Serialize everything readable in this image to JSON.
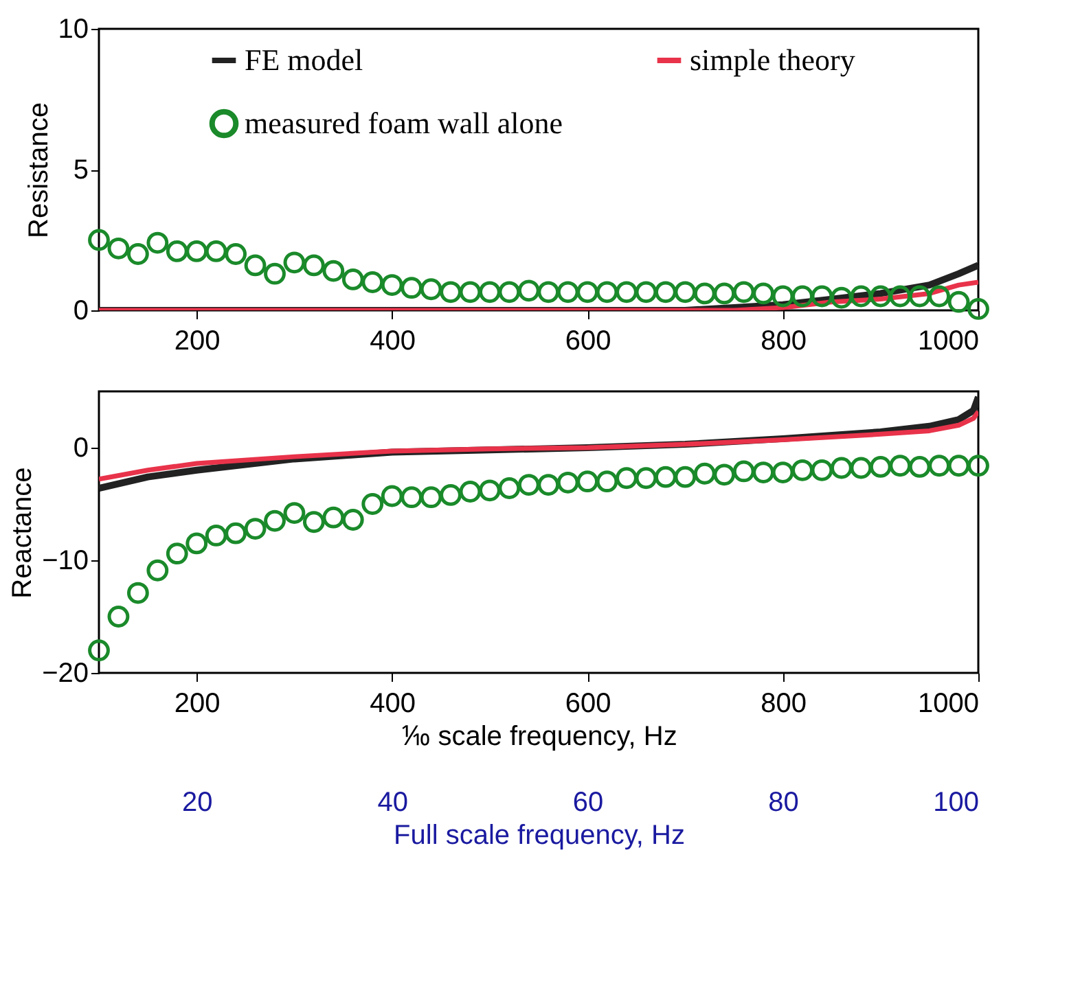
{
  "chart_data": [
    {
      "type": "line",
      "ylabel": "Resistance",
      "xlim": [
        100,
        1000
      ],
      "xticks": [
        200,
        400,
        600,
        800,
        1000
      ],
      "ylim": [
        0,
        10
      ],
      "yticks": [
        0,
        5,
        10
      ],
      "grid": false,
      "legend": "top",
      "series": [
        {
          "name": "FE model",
          "color": "#222222",
          "x": [
            100,
            300,
            500,
            700,
            750,
            800,
            850,
            900,
            950,
            980,
            1000
          ],
          "values": [
            0,
            0,
            0,
            0,
            0.1,
            0.2,
            0.4,
            0.6,
            0.9,
            1.3,
            1.6
          ]
        },
        {
          "name": "simple theory",
          "color": "#e8334a",
          "x": [
            100,
            300,
            500,
            750,
            800,
            850,
            900,
            950,
            980,
            1000
          ],
          "values": [
            0,
            0,
            0,
            0,
            0.1,
            0.3,
            0.4,
            0.6,
            0.9,
            1.0
          ]
        },
        {
          "name": "measured foam wall alone",
          "type": "scatter",
          "marker": "circle",
          "color": "#1a8a2a",
          "x": [
            100,
            120,
            140,
            160,
            180,
            200,
            220,
            240,
            260,
            280,
            300,
            320,
            340,
            360,
            380,
            400,
            420,
            440,
            460,
            480,
            500,
            520,
            540,
            560,
            580,
            600,
            620,
            640,
            660,
            680,
            700,
            720,
            740,
            760,
            780,
            800,
            820,
            840,
            860,
            880,
            900,
            920,
            940,
            960,
            980,
            1000
          ],
          "values": [
            2.5,
            2.2,
            2.0,
            2.4,
            2.1,
            2.1,
            2.1,
            2.0,
            1.6,
            1.3,
            1.7,
            1.6,
            1.4,
            1.1,
            1.0,
            0.9,
            0.8,
            0.75,
            0.65,
            0.65,
            0.65,
            0.65,
            0.7,
            0.65,
            0.65,
            0.65,
            0.65,
            0.65,
            0.65,
            0.65,
            0.65,
            0.6,
            0.6,
            0.65,
            0.6,
            0.5,
            0.5,
            0.5,
            0.45,
            0.5,
            0.5,
            0.5,
            0.5,
            0.5,
            0.3,
            0.05
          ]
        }
      ]
    },
    {
      "type": "line",
      "ylabel": "Reactance",
      "xlabel": "⅒ scale frequency, Hz",
      "x2label": "Full scale frequency, Hz",
      "xlim": [
        100,
        1000
      ],
      "xticks": [
        200,
        400,
        600,
        800,
        1000
      ],
      "x2lim": [
        10,
        100
      ],
      "x2ticks": [
        20,
        40,
        60,
        80,
        100
      ],
      "ylim": [
        -20,
        5
      ],
      "yticks": [
        -20,
        -10,
        0
      ],
      "grid": false,
      "series": [
        {
          "name": "FE model",
          "color": "#222222",
          "x": [
            100,
            150,
            200,
            300,
            400,
            500,
            600,
            700,
            800,
            900,
            950,
            980,
            995,
            1000
          ],
          "values": [
            -3.6,
            -2.6,
            -2.0,
            -1.0,
            -0.4,
            -0.2,
            0,
            0.3,
            0.8,
            1.4,
            1.9,
            2.5,
            3.3,
            4.5
          ]
        },
        {
          "name": "simple theory",
          "color": "#e8334a",
          "x": [
            100,
            150,
            200,
            300,
            400,
            500,
            600,
            700,
            800,
            900,
            950,
            980,
            995,
            1000
          ],
          "values": [
            -2.8,
            -2.0,
            -1.4,
            -0.8,
            -0.3,
            -0.1,
            0,
            0.3,
            0.7,
            1.2,
            1.5,
            2.0,
            2.6,
            3.2
          ]
        },
        {
          "name": "measured foam wall alone",
          "type": "scatter",
          "marker": "circle",
          "color": "#1a8a2a",
          "x": [
            100,
            120,
            140,
            160,
            180,
            200,
            220,
            240,
            260,
            280,
            300,
            320,
            340,
            360,
            380,
            400,
            420,
            440,
            460,
            480,
            500,
            520,
            540,
            560,
            580,
            600,
            620,
            640,
            660,
            680,
            700,
            720,
            740,
            760,
            780,
            800,
            820,
            840,
            860,
            880,
            900,
            920,
            940,
            960,
            980,
            1000
          ],
          "values": [
            -18.0,
            -15.0,
            -12.9,
            -10.9,
            -9.4,
            -8.5,
            -7.8,
            -7.6,
            -7.2,
            -6.5,
            -5.8,
            -6.6,
            -6.2,
            -6.4,
            -5.0,
            -4.3,
            -4.4,
            -4.4,
            -4.2,
            -3.9,
            -3.8,
            -3.6,
            -3.3,
            -3.3,
            -3.1,
            -3.0,
            -3.0,
            -2.7,
            -2.7,
            -2.6,
            -2.6,
            -2.3,
            -2.4,
            -2.1,
            -2.2,
            -2.2,
            -2.0,
            -2.0,
            -1.8,
            -1.8,
            -1.7,
            -1.6,
            -1.7,
            -1.6,
            -1.6,
            -1.6
          ]
        }
      ]
    }
  ]
}
